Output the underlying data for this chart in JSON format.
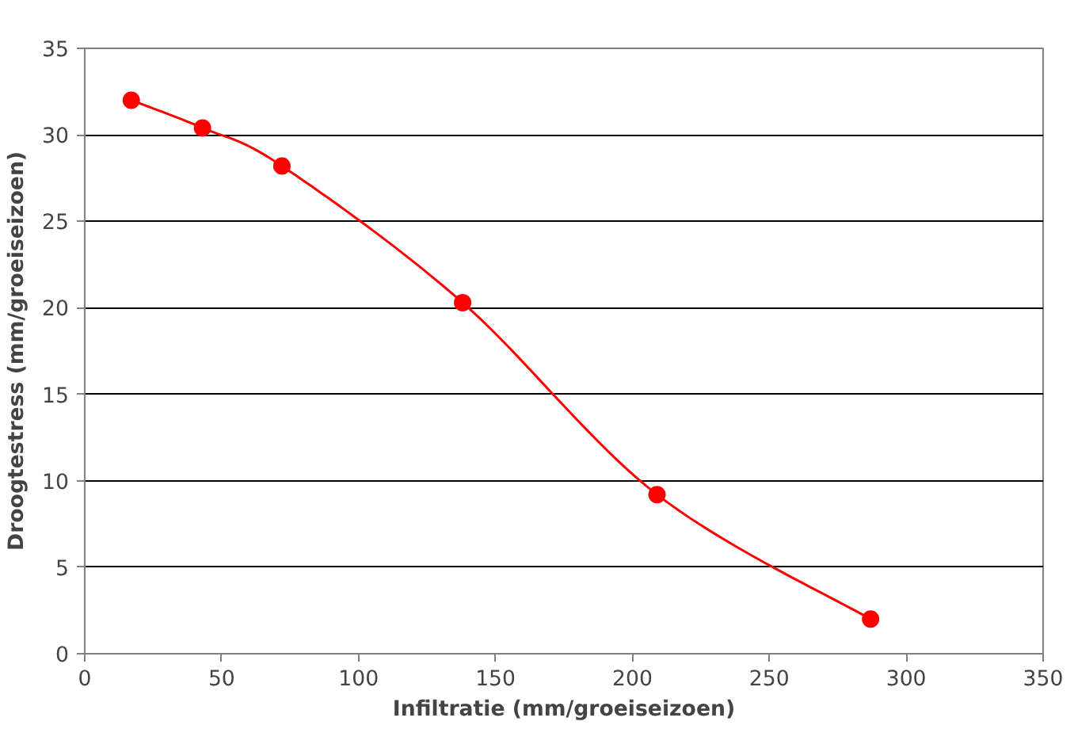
{
  "chart_data": {
    "type": "line",
    "xlabel": "Infiltratie (mm/groeiseizoen)",
    "ylabel": "Droogtestress (mm/groeiseizoen)",
    "x": [
      17,
      43,
      72,
      138,
      209,
      287
    ],
    "series": [
      {
        "color": "#ff0000",
        "values": [
          32,
          30.4,
          28.2,
          20.3,
          9.2,
          2
        ]
      }
    ],
    "xlim": [
      0,
      350
    ],
    "xticks": [
      0,
      50,
      100,
      150,
      200,
      250,
      300,
      350
    ],
    "ylim": [
      0,
      35
    ],
    "yticks": [
      0,
      5,
      10,
      15,
      20,
      25,
      30,
      35
    ],
    "grid": "y",
    "marker": "circle",
    "line_style": "solid"
  }
}
